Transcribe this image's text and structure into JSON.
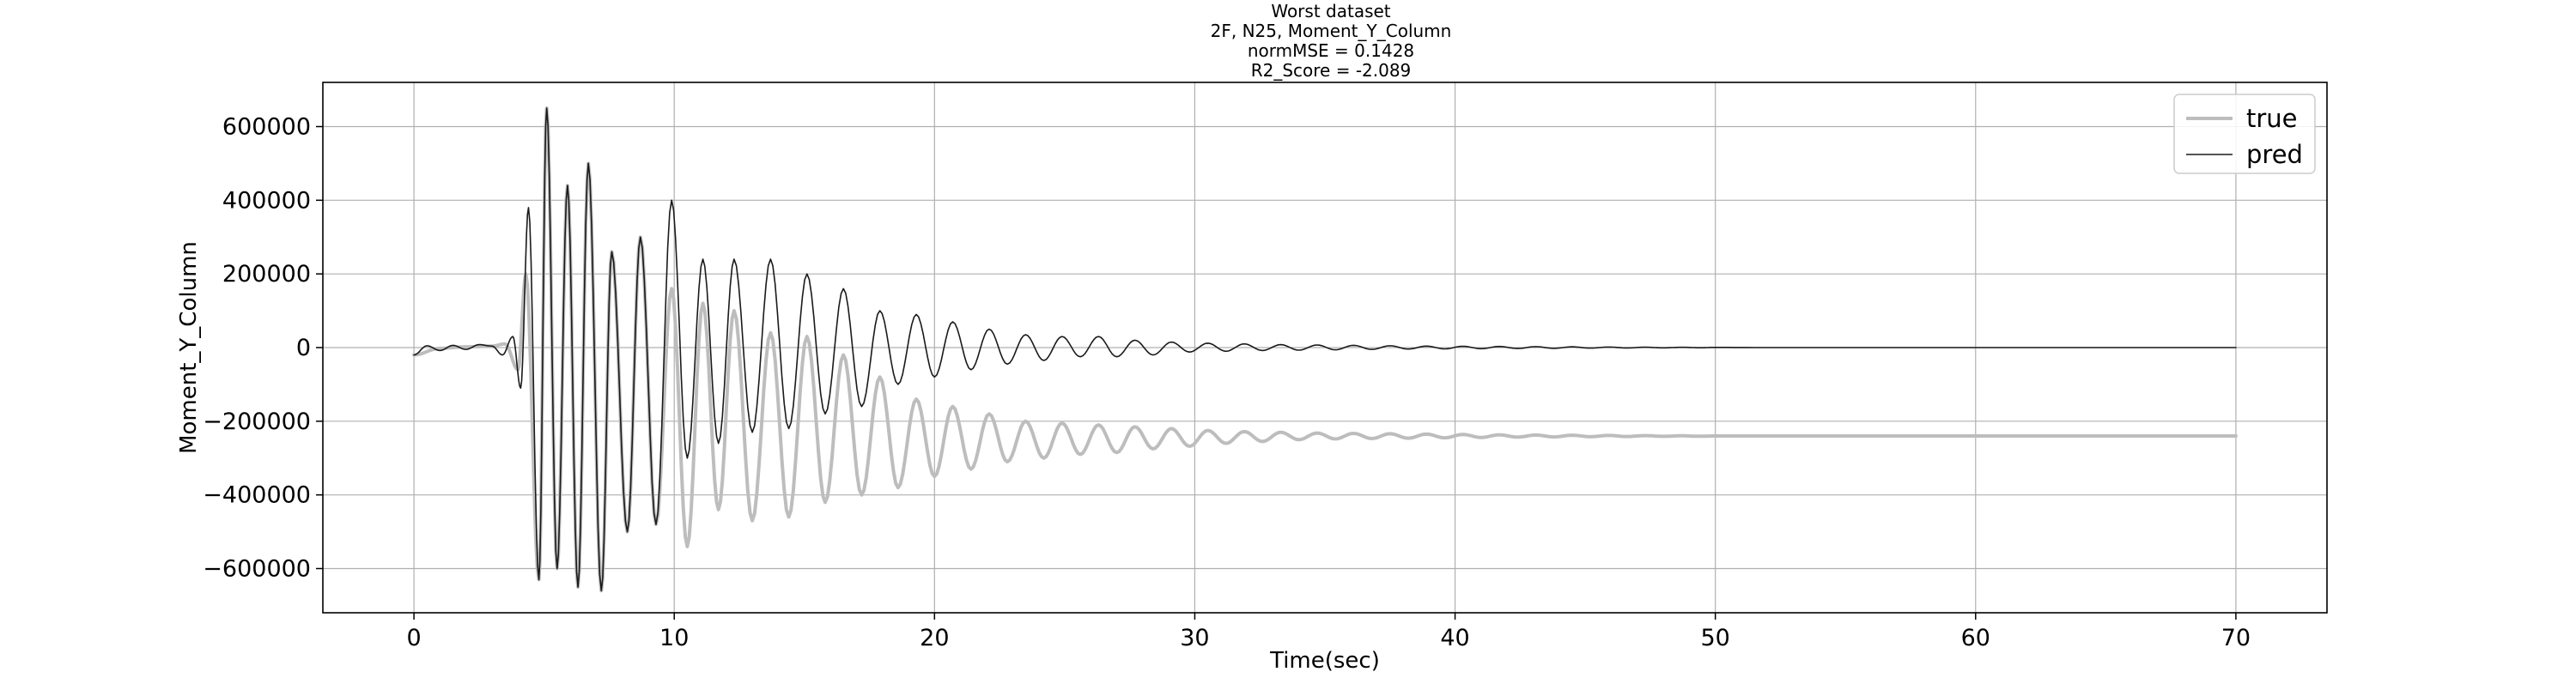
{
  "chart_data": {
    "type": "line",
    "title_lines": [
      "Worst dataset",
      "2F, N25, Moment_Y_Column",
      "normMSE = 0.1428",
      "R2_Score = -2.089"
    ],
    "xlabel": "Time(sec)",
    "ylabel": "Moment_Y_Column",
    "xlim": [
      -3.5,
      73.5
    ],
    "ylim": [
      -720000,
      720000
    ],
    "xticks": [
      0,
      10,
      20,
      30,
      40,
      50,
      60,
      70
    ],
    "xtick_labels": [
      "0",
      "10",
      "20",
      "30",
      "40",
      "50",
      "60",
      "70"
    ],
    "yticks": [
      600000,
      400000,
      200000,
      0,
      -200000,
      -400000,
      -600000
    ],
    "ytick_labels": [
      "600000",
      "400000",
      "200000",
      "0",
      "−200000",
      "−400000",
      "−600000"
    ],
    "grid": true,
    "legend": {
      "position": "top-right"
    },
    "series": [
      {
        "name": "true",
        "color": "#bdbdbd",
        "line_width": 4,
        "x": [
          0,
          1,
          2,
          3,
          3.5,
          4,
          4.3,
          4.8,
          5.1,
          5.5,
          5.9,
          6.3,
          6.7,
          7.2,
          7.6,
          8.2,
          8.7,
          9.3,
          9.9,
          10.5,
          11.1,
          11.7,
          12.3,
          13,
          13.7,
          14.4,
          15.1,
          15.8,
          16.5,
          17.2,
          17.9,
          18.6,
          19.3,
          20,
          20.7,
          21.4,
          22.1,
          22.8,
          23.5,
          24.2,
          24.9,
          25.6,
          26.3,
          27,
          27.7,
          28.4,
          29.1,
          29.8,
          30.5,
          31.2,
          31.9,
          32.6,
          33.3,
          34,
          34.7,
          35.4,
          36.1,
          36.8,
          37.5,
          38.2,
          38.9,
          39.6,
          40.3,
          41,
          41.7,
          42.4,
          43.1,
          43.8,
          44.5,
          45.2,
          45.9,
          46.6,
          47.3,
          48,
          48.7,
          49.4,
          50,
          52,
          55,
          60,
          65,
          70
        ],
        "y": [
          -20000,
          -2000,
          2000,
          4000,
          10000,
          -60000,
          200000,
          -630000,
          650000,
          -600000,
          440000,
          -650000,
          500000,
          -660000,
          260000,
          -500000,
          300000,
          -480000,
          160000,
          -540000,
          120000,
          -440000,
          100000,
          -470000,
          40000,
          -460000,
          30000,
          -420000,
          -20000,
          -400000,
          -80000,
          -380000,
          -140000,
          -350000,
          -160000,
          -330000,
          -180000,
          -310000,
          -200000,
          -300000,
          -205000,
          -290000,
          -210000,
          -285000,
          -215000,
          -275000,
          -220000,
          -268000,
          -225000,
          -260000,
          -228000,
          -255000,
          -230000,
          -250000,
          -232000,
          -248000,
          -233000,
          -247000,
          -234000,
          -246000,
          -235000,
          -245000,
          -236000,
          -244000,
          -237000,
          -243000,
          -237500,
          -242500,
          -238000,
          -242000,
          -238500,
          -241500,
          -239000,
          -241000,
          -239500,
          -240800,
          -240000,
          -240000,
          -240000,
          -240000,
          -240000,
          -240000
        ]
      },
      {
        "name": "pred",
        "color": "#1a1a1a",
        "line_width": 1.6,
        "x": [
          0,
          0.5,
          1,
          1.5,
          2,
          2.5,
          3,
          3.4,
          3.8,
          4.1,
          4.4,
          4.8,
          5.1,
          5.5,
          5.9,
          6.3,
          6.7,
          7.2,
          7.6,
          8.2,
          8.7,
          9.3,
          9.9,
          10.5,
          11.1,
          11.7,
          12.3,
          13,
          13.7,
          14.4,
          15.1,
          15.8,
          16.5,
          17.2,
          17.9,
          18.6,
          19.3,
          20,
          20.7,
          21.4,
          22.1,
          22.8,
          23.5,
          24.2,
          24.9,
          25.6,
          26.3,
          27,
          27.7,
          28.4,
          29.1,
          29.8,
          30.5,
          31.2,
          31.9,
          32.6,
          33.3,
          34,
          34.7,
          35.4,
          36.1,
          36.8,
          37.5,
          38.2,
          38.9,
          39.6,
          40.3,
          41,
          41.7,
          42.4,
          43.1,
          43.8,
          44.5,
          45.2,
          45.9,
          46.6,
          47.3,
          48,
          48.7,
          49.4,
          50,
          52,
          55,
          60,
          65,
          70
        ],
        "y": [
          -20000,
          5000,
          -8000,
          6000,
          -5000,
          8000,
          4000,
          -20000,
          30000,
          -110000,
          380000,
          -630000,
          650000,
          -600000,
          440000,
          -650000,
          500000,
          -660000,
          260000,
          -500000,
          300000,
          -480000,
          400000,
          -300000,
          240000,
          -260000,
          240000,
          -230000,
          240000,
          -220000,
          200000,
          -180000,
          160000,
          -160000,
          100000,
          -100000,
          90000,
          -80000,
          70000,
          -60000,
          50000,
          -45000,
          35000,
          -35000,
          30000,
          -25000,
          30000,
          -25000,
          20000,
          -20000,
          15000,
          -12000,
          12000,
          -10000,
          10000,
          -8000,
          8000,
          -7000,
          7000,
          -6000,
          6000,
          -5000,
          5000,
          -4000,
          4000,
          -3500,
          3500,
          -3000,
          3000,
          -2500,
          2500,
          -2000,
          2000,
          -1500,
          1500,
          -1000,
          1000,
          -800,
          800,
          -500,
          500,
          0,
          0,
          0,
          0,
          0
        ]
      }
    ]
  }
}
